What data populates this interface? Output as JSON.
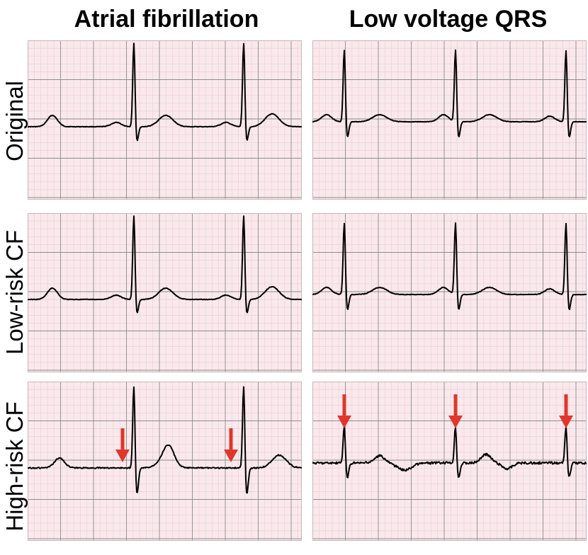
{
  "columns": [
    {
      "title": "Atrial fibrillation"
    },
    {
      "title": "Low voltage QRS"
    }
  ],
  "rows": [
    {
      "label": "Original"
    },
    {
      "label": "Low-risk CF"
    },
    {
      "label": "High-risk CF"
    }
  ],
  "colors": {
    "grid_background": "#f9e9ec",
    "grid_minor": "#efcfd5",
    "grid_major": "#8c8c8c",
    "trace": "#000000",
    "arrow": "#e0362b"
  },
  "panels": [
    {
      "row": 0,
      "col": 0,
      "variant": "af",
      "noise": "low",
      "arrows": false
    },
    {
      "row": 0,
      "col": 1,
      "variant": "lv",
      "noise": "low",
      "arrows": false
    },
    {
      "row": 1,
      "col": 0,
      "variant": "af",
      "noise": "low",
      "arrows": false
    },
    {
      "row": 1,
      "col": 1,
      "variant": "lv",
      "noise": "low",
      "arrows": false
    },
    {
      "row": 2,
      "col": 0,
      "variant": "af_high",
      "noise": "med",
      "arrows": true
    },
    {
      "row": 2,
      "col": 1,
      "variant": "lv_high",
      "noise": "high",
      "arrows": true
    }
  ]
}
